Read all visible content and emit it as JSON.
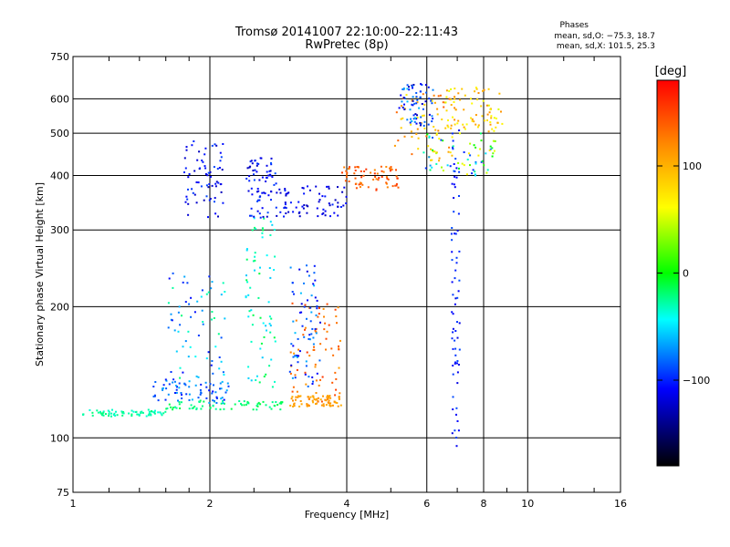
{
  "chart_data": {
    "type": "scatter",
    "title": "Tromsø 20141007 22:10:00–22:11:43",
    "subtitle": "RwPretec (8p)",
    "xlabel": "Frequency [MHz]",
    "ylabel": "Stationary phase Virtual Height [km]",
    "x_scale": "log",
    "y_scale": "log",
    "xlim": [
      1,
      16
    ],
    "ylim": [
      75,
      750
    ],
    "x_ticks": [
      1,
      2,
      4,
      6,
      8,
      10,
      16
    ],
    "x_tick_labels": [
      "1",
      "2",
      "4",
      "6",
      "8",
      "10",
      "16"
    ],
    "y_ticks": [
      75,
      100,
      200,
      300,
      400,
      500,
      600,
      750
    ],
    "y_tick_labels": [
      "75",
      "100",
      "200",
      "300",
      "400",
      "500",
      "600",
      "750"
    ],
    "grid": true,
    "phases_legend": {
      "heading": "Phases",
      "o_line": "mean, sd,O: −75.3, 18.7",
      "x_line": "mean, sd,X: 101.5, 25.3"
    },
    "colorbar": {
      "label": "[deg]",
      "range": [
        -180,
        180
      ],
      "ticks": [
        100,
        0,
        -100
      ],
      "tick_labels": [
        "100",
        "0",
        "−100"
      ],
      "colors": [
        "#ff0000",
        "#ff8c00",
        "#ffff00",
        "#00ff00",
        "#00ffff",
        "#0000ff",
        "#000000"
      ]
    },
    "series": [
      {
        "clusters": [
          {
            "x": [
              1.05,
              1.6
            ],
            "y": [
              112,
              116
            ],
            "phase": [
              -40,
              -20
            ]
          },
          {
            "x": [
              1.6,
              2.9
            ],
            "y": [
              116,
              122
            ],
            "phase": [
              -30,
              -10
            ]
          },
          {
            "x": [
              1.5,
              2.2
            ],
            "y": [
              120,
              135
            ],
            "phase": [
              -110,
              -60
            ]
          },
          {
            "x": [
              1.6,
              2.2
            ],
            "y": [
              135,
              250
            ],
            "phase": [
              -110,
              -20
            ]
          },
          {
            "x": [
              1.75,
              2.15
            ],
            "y": [
              320,
              480
            ],
            "phase": [
              -130,
              -90
            ]
          },
          {
            "x": [
              2.4,
              2.8
            ],
            "y": [
              130,
              330
            ],
            "phase": [
              -60,
              -10
            ]
          },
          {
            "x": [
              2.4,
              2.8
            ],
            "y": [
              320,
              440
            ],
            "phase": [
              -130,
              -90
            ]
          },
          {
            "x": [
              2.8,
              4.0
            ],
            "y": [
              322,
              380
            ],
            "phase": [
              -130,
              -100
            ]
          },
          {
            "x": [
              3.0,
              3.9
            ],
            "y": [
              120,
              205
            ],
            "phase": [
              110,
              160
            ]
          },
          {
            "x": [
              3.0,
              3.5
            ],
            "y": [
              130,
              250
            ],
            "phase": [
              -120,
              -60
            ]
          },
          {
            "x": [
              3.0,
              3.9
            ],
            "y": [
              118,
              125
            ],
            "phase": [
              100,
              120
            ]
          },
          {
            "x": [
              3.9,
              5.2
            ],
            "y": [
              370,
              420
            ],
            "phase": [
              120,
              160
            ]
          },
          {
            "x": [
              5.1,
              7.0
            ],
            "y": [
              430,
              620
            ],
            "phase": [
              60,
              140
            ]
          },
          {
            "x": [
              5.2,
              6.2
            ],
            "y": [
              520,
              650
            ],
            "phase": [
              -130,
              -60
            ]
          },
          {
            "x": [
              6.6,
              8.8
            ],
            "y": [
              500,
              640
            ],
            "phase": [
              50,
              120
            ]
          },
          {
            "x": [
              6.8,
              7.1
            ],
            "y": [
              95,
              510
            ],
            "phase": [
              -120,
              -90
            ]
          },
          {
            "x": [
              5.8,
              8.5
            ],
            "y": [
              400,
              500
            ],
            "phase": [
              -110,
              80
            ]
          }
        ]
      }
    ]
  }
}
